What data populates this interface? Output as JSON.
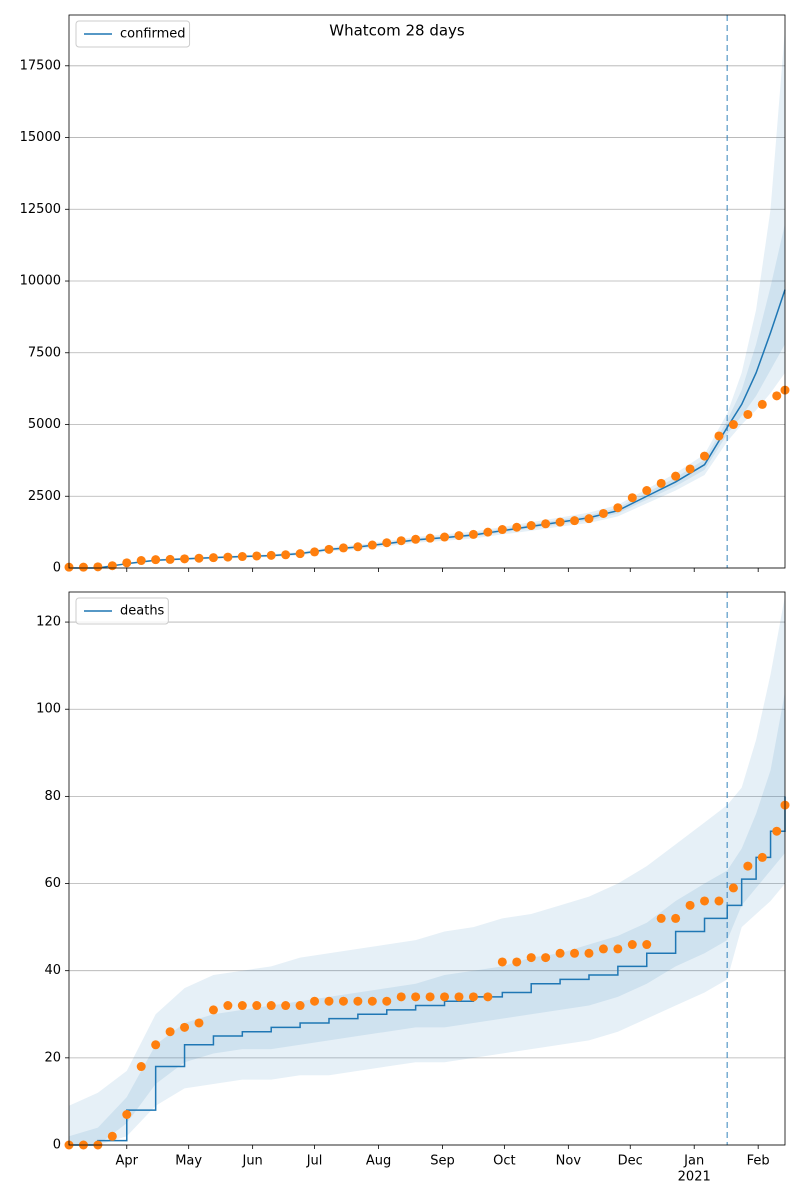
{
  "chart_data": [
    {
      "type": "line",
      "title": "Whatcom 28 days",
      "legend": "upper left",
      "grid": true,
      "x": [
        3,
        17,
        31,
        45,
        59,
        73,
        87,
        101,
        115,
        129,
        143,
        157,
        171,
        185,
        199,
        213,
        227,
        241,
        255,
        269,
        283,
        297,
        311,
        322,
        329,
        336,
        343,
        350
      ],
      "series": [
        {
          "name": "confirmed",
          "color": "#1f77b4",
          "values": [
            0,
            0,
            150,
            270,
            320,
            360,
            400,
            430,
            500,
            650,
            730,
            850,
            980,
            1060,
            1150,
            1300,
            1450,
            1600,
            1750,
            2000,
            2500,
            3000,
            3600,
            4900,
            5700,
            6800,
            8200,
            9700
          ]
        }
      ],
      "bands": [
        {
          "color": "#1f77b4",
          "lower": [
            0,
            0,
            120,
            230,
            280,
            320,
            350,
            380,
            440,
            580,
            650,
            760,
            880,
            950,
            1030,
            1170,
            1300,
            1440,
            1570,
            1800,
            2250,
            2700,
            3240,
            4410,
            5000,
            5500,
            6100,
            6800
          ],
          "upper": [
            30,
            40,
            180,
            310,
            360,
            400,
            450,
            480,
            560,
            720,
            810,
            940,
            1080,
            1170,
            1270,
            1430,
            1600,
            1760,
            1930,
            2200,
            2750,
            3300,
            3960,
            5390,
            6800,
            9000,
            12500,
            18800
          ]
        },
        {
          "color": "#1f77b4",
          "lower": [
            0,
            0,
            140,
            250,
            300,
            340,
            380,
            410,
            470,
            620,
            690,
            810,
            930,
            1010,
            1090,
            1240,
            1380,
            1520,
            1660,
            1900,
            2380,
            2850,
            3420,
            4660,
            5300,
            6000,
            6900,
            7800
          ],
          "upper": [
            15,
            20,
            160,
            290,
            340,
            380,
            420,
            450,
            530,
            680,
            770,
            890,
            1030,
            1110,
            1210,
            1370,
            1520,
            1680,
            1840,
            2100,
            2630,
            3150,
            3780,
            5150,
            6200,
            7800,
            9800,
            12000
          ]
        }
      ],
      "points": {
        "color": "#ff7f0e",
        "x": [
          3,
          10,
          17,
          24,
          31,
          38,
          45,
          52,
          59,
          66,
          73,
          80,
          87,
          94,
          101,
          108,
          115,
          122,
          129,
          136,
          143,
          150,
          157,
          164,
          171,
          178,
          185,
          192,
          199,
          206,
          213,
          220,
          227,
          234,
          241,
          248,
          255,
          262,
          269,
          276,
          283,
          290,
          297,
          304,
          311,
          318,
          325,
          332,
          339,
          346,
          350
        ],
        "values": [
          30,
          30,
          40,
          80,
          180,
          260,
          290,
          300,
          320,
          340,
          360,
          380,
          400,
          420,
          440,
          460,
          500,
          560,
          650,
          700,
          740,
          800,
          880,
          950,
          1000,
          1040,
          1080,
          1130,
          1170,
          1250,
          1340,
          1420,
          1480,
          1540,
          1600,
          1650,
          1720,
          1900,
          2100,
          2450,
          2700,
          2950,
          3200,
          3450,
          3900,
          4600,
          5000,
          5350,
          5700,
          6000,
          6200
        ]
      },
      "vline": 322,
      "xlim": [
        3,
        350
      ],
      "xticks": [
        31,
        61,
        92,
        122,
        153,
        184,
        214,
        245,
        275,
        306,
        337
      ],
      "ylim": [
        0,
        19270
      ],
      "yticks": [
        0,
        2500,
        5000,
        7500,
        10000,
        12500,
        15000,
        17500
      ]
    },
    {
      "type": "line",
      "legend": "upper left",
      "grid": true,
      "drawstyle": "steps-post",
      "x": [
        3,
        17,
        31,
        45,
        59,
        73,
        87,
        101,
        115,
        129,
        143,
        157,
        171,
        185,
        199,
        213,
        227,
        241,
        255,
        269,
        283,
        297,
        311,
        322,
        329,
        336,
        343,
        350
      ],
      "series": [
        {
          "name": "deaths",
          "color": "#1f77b4",
          "values": [
            0,
            1,
            8,
            18,
            23,
            25,
            26,
            27,
            28,
            29,
            30,
            31,
            32,
            33,
            34,
            35,
            37,
            38,
            39,
            41,
            44,
            49,
            52,
            55,
            61,
            66,
            72,
            80
          ]
        }
      ],
      "bands": [
        {
          "color": "#1f77b4",
          "lower": [
            0,
            0,
            2,
            9,
            13,
            14,
            15,
            15,
            16,
            16,
            17,
            18,
            19,
            19,
            20,
            21,
            22,
            23,
            24,
            26,
            29,
            32,
            35,
            38,
            50,
            53,
            56,
            60
          ],
          "upper": [
            9,
            12,
            17,
            30,
            36,
            39,
            40,
            41,
            43,
            44,
            45,
            46,
            47,
            49,
            50,
            52,
            53,
            55,
            57,
            60,
            64,
            69,
            74,
            78,
            82,
            93,
            108,
            126
          ]
        },
        {
          "color": "#1f77b4",
          "lower": [
            0,
            0,
            5,
            14,
            19,
            21,
            22,
            22,
            23,
            24,
            25,
            26,
            27,
            27,
            28,
            29,
            30,
            31,
            32,
            34,
            37,
            41,
            44,
            47,
            55,
            59,
            63,
            67
          ],
          "upper": [
            2,
            4,
            11,
            23,
            28,
            30,
            31,
            32,
            33,
            34,
            35,
            36,
            37,
            39,
            40,
            41,
            43,
            44,
            46,
            48,
            51,
            56,
            60,
            63,
            68,
            76,
            86,
            104
          ]
        }
      ],
      "points": {
        "color": "#ff7f0e",
        "x": [
          3,
          10,
          17,
          24,
          31,
          38,
          45,
          52,
          59,
          66,
          73,
          80,
          87,
          94,
          101,
          108,
          115,
          122,
          129,
          136,
          143,
          150,
          157,
          164,
          171,
          178,
          185,
          192,
          199,
          206,
          213,
          220,
          227,
          234,
          241,
          248,
          255,
          262,
          269,
          276,
          283,
          290,
          297,
          304,
          311,
          318,
          325,
          332,
          339,
          346,
          350
        ],
        "values": [
          0,
          0,
          0,
          2,
          7,
          18,
          23,
          26,
          27,
          28,
          31,
          32,
          32,
          32,
          32,
          32,
          32,
          33,
          33,
          33,
          33,
          33,
          33,
          34,
          34,
          34,
          34,
          34,
          34,
          34,
          42,
          42,
          43,
          43,
          44,
          44,
          44,
          45,
          45,
          46,
          46,
          52,
          52,
          55,
          56,
          56,
          59,
          64,
          66,
          72,
          78
        ]
      },
      "vline": 322,
      "xlim": [
        3,
        350
      ],
      "xticks": [
        {
          "value": 31,
          "label": "Apr"
        },
        {
          "value": 61,
          "label": "May"
        },
        {
          "value": 92,
          "label": "Jun"
        },
        {
          "value": 122,
          "label": "Jul"
        },
        {
          "value": 153,
          "label": "Aug"
        },
        {
          "value": 184,
          "label": "Sep"
        },
        {
          "value": 214,
          "label": "Oct"
        },
        {
          "value": 245,
          "label": "Nov"
        },
        {
          "value": 275,
          "label": "Dec"
        },
        {
          "value": 306,
          "label": "Jan"
        },
        {
          "value": 337,
          "label": "Feb"
        }
      ],
      "x_year_label": "2021",
      "ylim": [
        0,
        126.9
      ],
      "yticks": [
        0,
        20,
        40,
        60,
        80,
        100,
        120
      ]
    }
  ]
}
